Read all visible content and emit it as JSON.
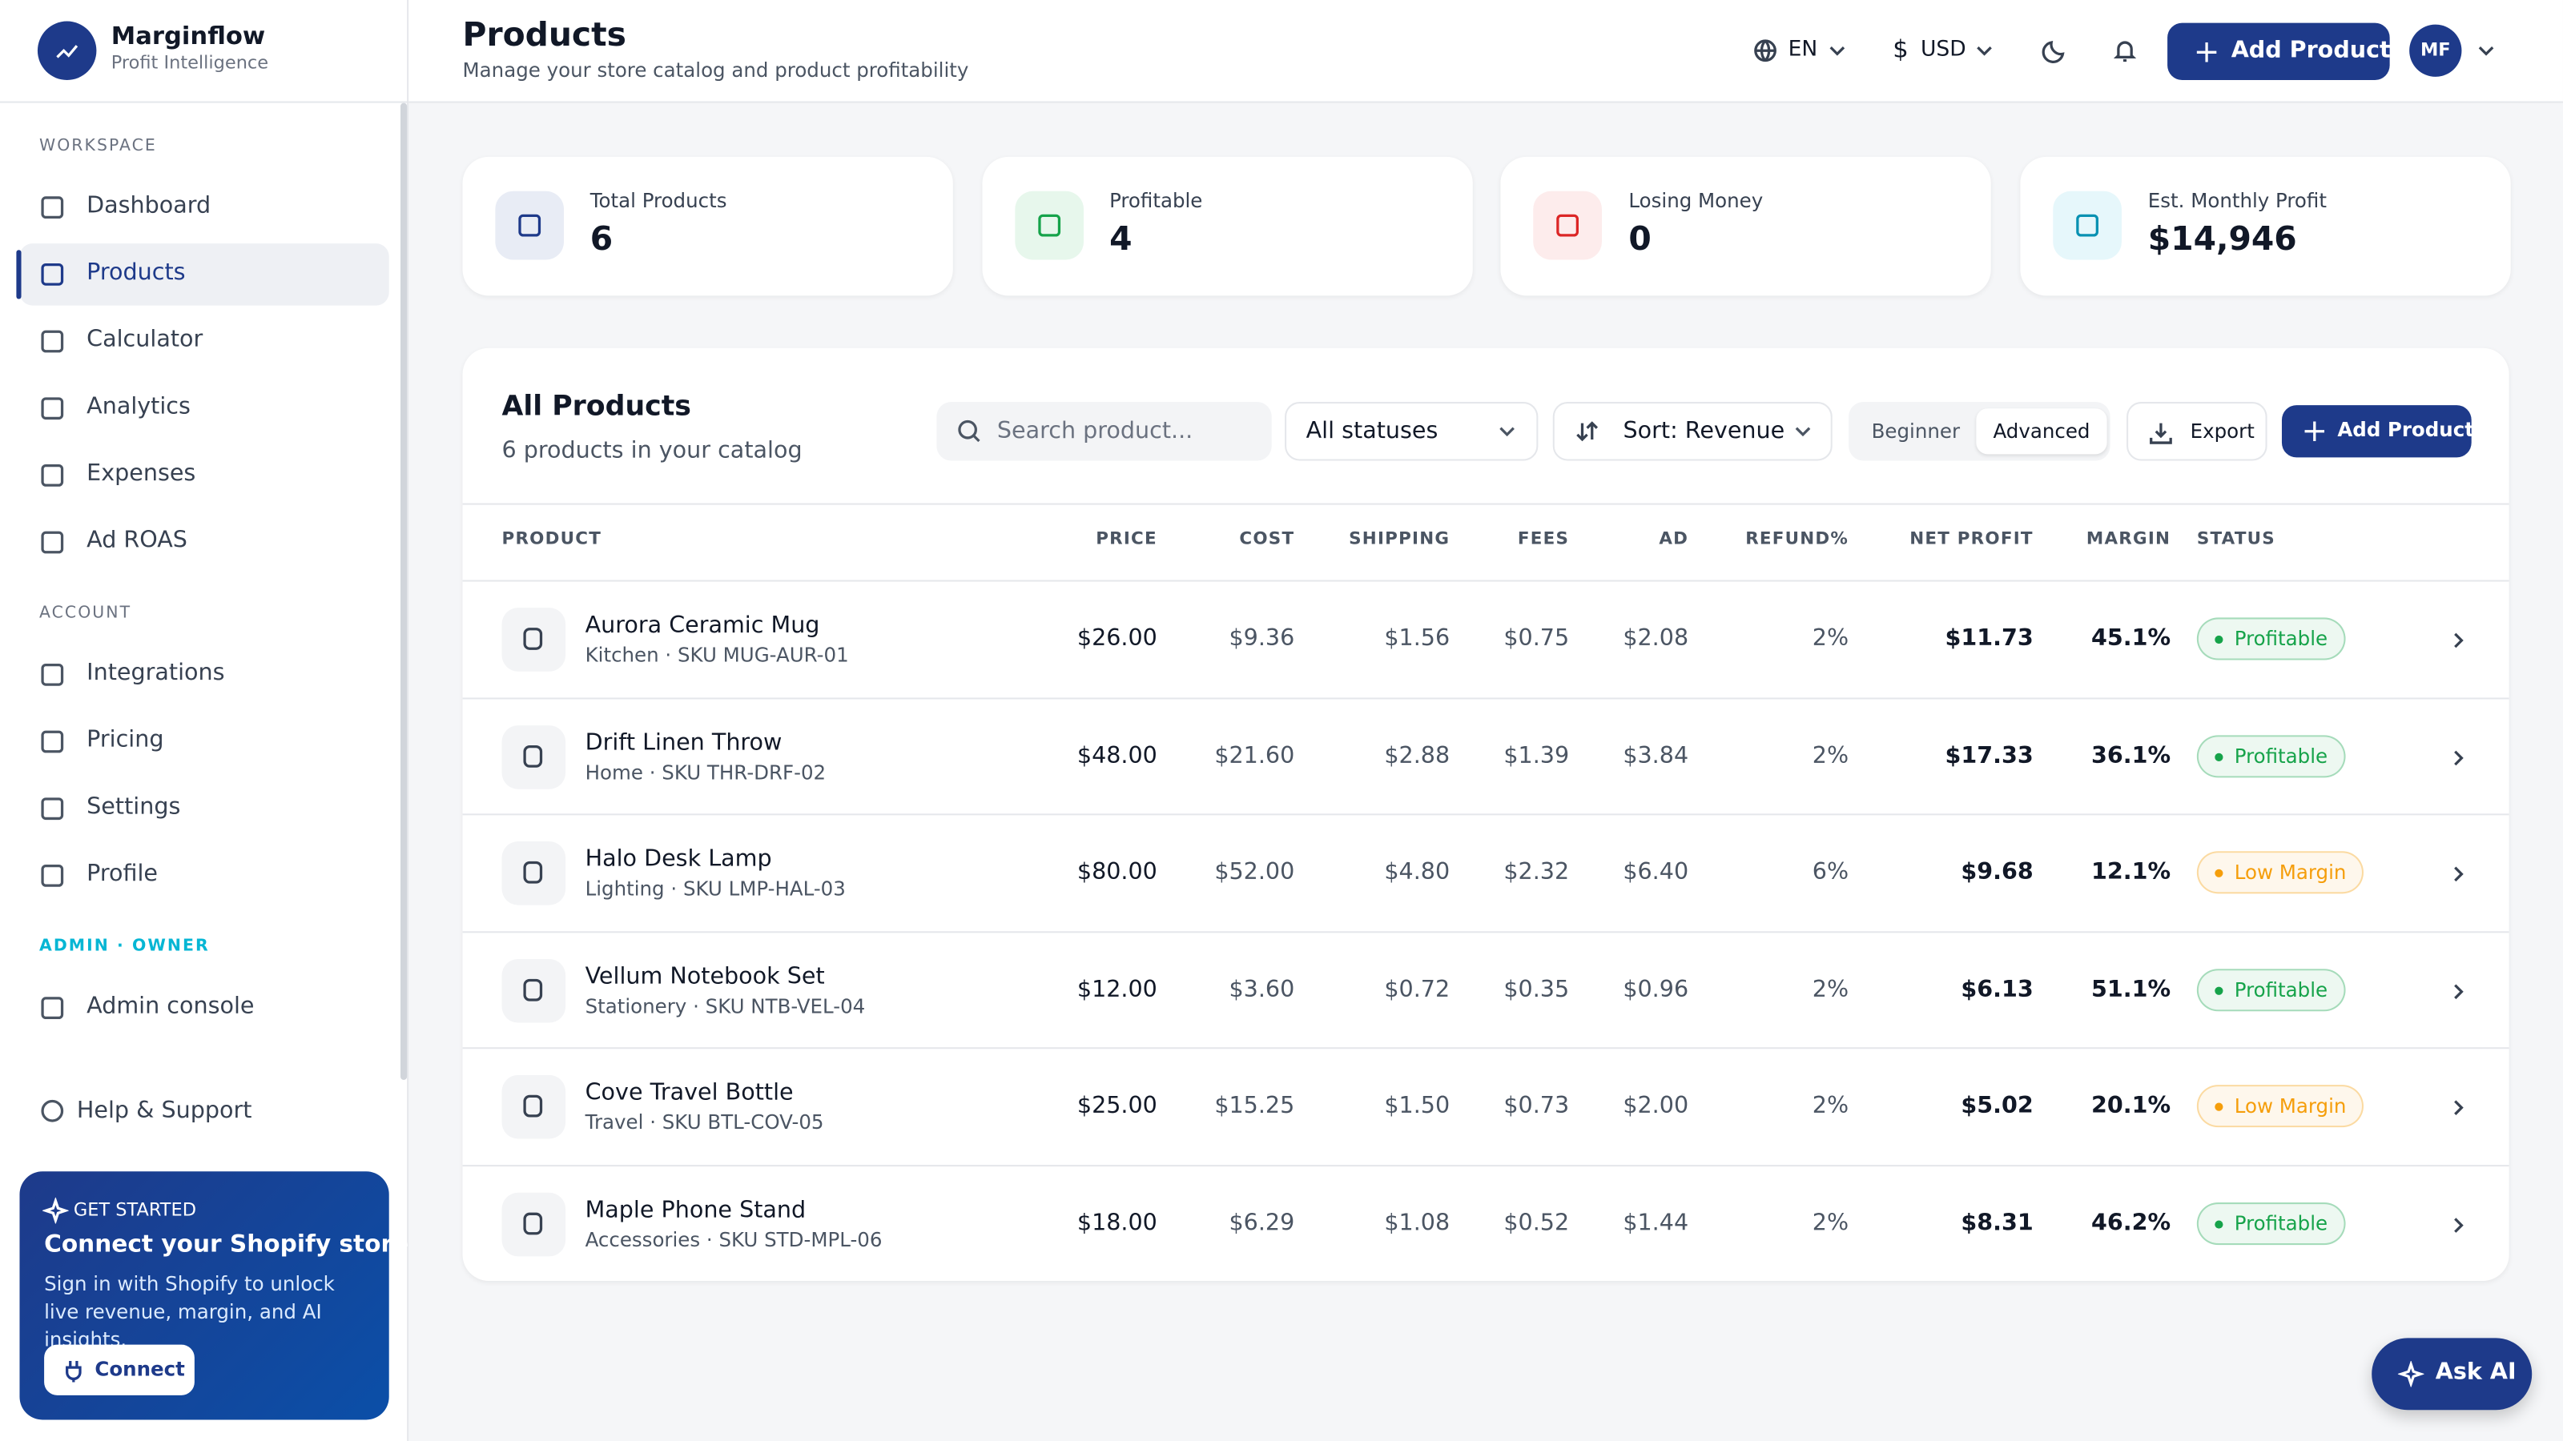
{
  "brand": {
    "name": "Marginflow",
    "tagline": "Profit Intelligence"
  },
  "sidebar": {
    "sections": [
      {
        "label": "WORKSPACE",
        "items": [
          "Dashboard",
          "Products",
          "Calculator",
          "Analytics",
          "Expenses",
          "Ad ROAS"
        ]
      },
      {
        "label": "ACCOUNT",
        "items": [
          "Integrations",
          "Pricing",
          "Settings",
          "Profile"
        ]
      },
      {
        "label": "ADMIN · OWNER",
        "items": [
          "Admin console"
        ]
      }
    ],
    "active": "Products",
    "help": "Help & Support",
    "promo": {
      "eyebrow": "GET STARTED",
      "title": "Connect your Shopify store",
      "text": "Sign in with Shopify to unlock live revenue, margin, and AI insights.",
      "button": "Connect"
    }
  },
  "header": {
    "title": "Products",
    "subtitle": "Manage your store catalog and product profitability",
    "language": "EN",
    "currency_symbol": "$",
    "currency": "USD",
    "add_button": "Add Product",
    "avatar": "MF"
  },
  "stats": [
    {
      "label": "Total Products",
      "value": "6",
      "color": "#1e3a8a",
      "bg": "#e8ecf5"
    },
    {
      "label": "Profitable",
      "value": "4",
      "color": "#16a34a",
      "bg": "#e7f7ec"
    },
    {
      "label": "Losing Money",
      "value": "0",
      "color": "#dc2626",
      "bg": "#fdecec"
    },
    {
      "label": "Est. Monthly Profit",
      "value": "$14,946",
      "color": "#0891b2",
      "bg": "#e6f7fb"
    }
  ],
  "table": {
    "title": "All Products",
    "subtitle": "6 products in your catalog",
    "search": "Search product...",
    "filter": "All statuses",
    "sort": "Sort: Revenue",
    "modes": [
      "Beginner",
      "Advanced"
    ],
    "active_mode": "Advanced",
    "export": "Export",
    "add": "Add Product",
    "columns": [
      "PRODUCT",
      "PRICE",
      "COST",
      "SHIPPING",
      "FEES",
      "AD",
      "REFUND%",
      "NET PROFIT",
      "MARGIN",
      "STATUS"
    ],
    "rows": [
      {
        "name": "Aurora Ceramic Mug",
        "meta": "Kitchen · SKU MUG-AUR-01",
        "cells": [
          "$26.00",
          "$9.36",
          "$1.56",
          "$0.75",
          "$2.08",
          "2%",
          "$11.73",
          "45.1%"
        ],
        "status": "Profitable",
        "status_color": "#16a34a"
      },
      {
        "name": "Drift Linen Throw",
        "meta": "Home · SKU THR-DRF-02",
        "cells": [
          "$48.00",
          "$21.60",
          "$2.88",
          "$1.39",
          "$3.84",
          "2%",
          "$17.33",
          "36.1%"
        ],
        "status": "Profitable",
        "status_color": "#16a34a"
      },
      {
        "name": "Halo Desk Lamp",
        "meta": "Lighting · SKU LMP-HAL-03",
        "cells": [
          "$80.00",
          "$52.00",
          "$4.80",
          "$2.32",
          "$6.40",
          "6%",
          "$9.68",
          "12.1%"
        ],
        "status": "Low Margin",
        "status_color": "#f59e0b"
      },
      {
        "name": "Vellum Notebook Set",
        "meta": "Stationery · SKU NTB-VEL-04",
        "cells": [
          "$12.00",
          "$3.60",
          "$0.72",
          "$0.35",
          "$0.96",
          "2%",
          "$6.13",
          "51.1%"
        ],
        "status": "Profitable",
        "status_color": "#16a34a"
      },
      {
        "name": "Cove Travel Bottle",
        "meta": "Travel · SKU BTL-COV-05",
        "cells": [
          "$25.00",
          "$15.25",
          "$1.50",
          "$0.73",
          "$2.00",
          "2%",
          "$5.02",
          "20.1%"
        ],
        "status": "Low Margin",
        "status_color": "#f59e0b"
      },
      {
        "name": "Maple Phone Stand",
        "meta": "Accessories · SKU STD-MPL-06",
        "cells": [
          "$18.00",
          "$6.29",
          "$1.08",
          "$0.52",
          "$1.44",
          "2%",
          "$8.31",
          "46.2%"
        ],
        "status": "Profitable",
        "status_color": "#16a34a"
      }
    ]
  },
  "assistant": {
    "button": "Ask AI"
  }
}
